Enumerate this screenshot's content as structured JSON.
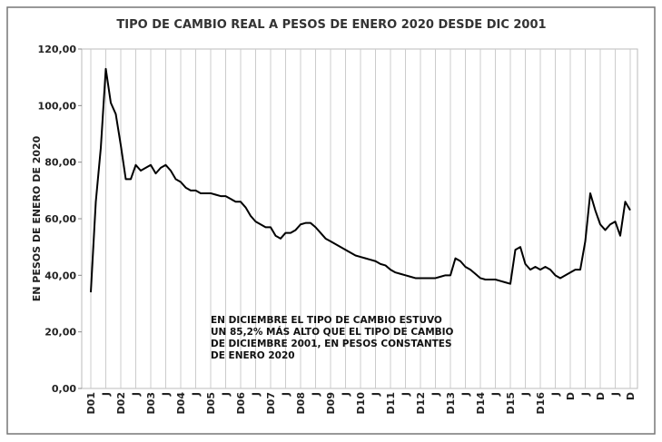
{
  "chart_data": {
    "type": "line",
    "title": "TIPO DE CAMBIO REAL A PESOS DE ENERO 2020 DESDE DIC 2001",
    "y_label": "EN PESOS DE ENERO DE 2020",
    "annotation": "EN DICIEMBRE EL TIPO DE CAMBIO ESTUVO UN 85,2% MÁS ALTO QUE EL TIPO DE CAMBIO DE DICIEMBRE 2001, EN PESOS CONSTANTES DE ENERO 2020",
    "categories": [
      "D01",
      null,
      null,
      "J",
      null,
      null,
      "D02",
      null,
      null,
      "J",
      null,
      null,
      "D03",
      null,
      null,
      "J",
      null,
      null,
      "D04",
      null,
      null,
      "J",
      null,
      null,
      "D05",
      null,
      null,
      "J",
      null,
      null,
      "D06",
      null,
      null,
      "J",
      null,
      null,
      "D07",
      null,
      null,
      "J",
      null,
      null,
      "D08",
      null,
      null,
      "J",
      null,
      null,
      "D09",
      null,
      null,
      "J",
      null,
      null,
      "D10",
      null,
      null,
      "J",
      null,
      null,
      "D11",
      null,
      null,
      "J",
      null,
      null,
      "D12",
      null,
      null,
      "J",
      null,
      null,
      "D13",
      null,
      null,
      "J",
      null,
      null,
      "D14",
      null,
      null,
      "J",
      null,
      null,
      "D15",
      null,
      null,
      "J",
      null,
      null,
      "D16",
      null,
      null,
      "J",
      null,
      null,
      "D",
      null,
      null,
      "J",
      null,
      null,
      "D",
      null,
      null,
      "J",
      null,
      null,
      "D"
    ],
    "values": [
      34,
      66,
      85,
      113,
      101,
      97,
      86,
      74,
      74,
      79,
      77,
      78,
      79,
      76,
      78,
      79,
      77,
      74,
      73,
      71,
      70,
      70,
      69,
      69,
      69,
      68.5,
      68,
      68,
      67,
      66,
      66,
      64,
      61,
      59,
      58,
      57,
      57,
      54,
      53,
      55,
      55,
      56,
      58,
      58.5,
      58.5,
      57,
      55,
      53,
      52,
      51,
      50,
      49,
      48,
      47,
      46.5,
      46,
      45.5,
      45,
      44,
      43.5,
      42,
      41,
      40.5,
      40,
      39.5,
      39,
      39,
      39,
      39,
      39,
      39.5,
      40,
      40,
      46,
      45,
      43,
      42,
      40.5,
      39,
      38.5,
      38.5,
      38.5,
      38,
      37.5,
      37,
      49,
      50,
      44,
      42,
      43,
      42,
      43,
      42,
      40,
      39,
      40,
      41,
      42,
      42,
      52,
      69,
      63,
      58,
      56,
      58,
      59,
      54,
      66,
      63
    ],
    "color": "#000000",
    "ylim": [
      0,
      120
    ],
    "yticks": [
      {
        "value": 0,
        "label": "0,00"
      },
      {
        "value": 20,
        "label": "20,00"
      },
      {
        "value": 40,
        "label": "40,00"
      },
      {
        "value": 60,
        "label": "60,00"
      },
      {
        "value": 80,
        "label": "80,00"
      },
      {
        "value": 100,
        "label": "100,00"
      },
      {
        "value": 120,
        "label": "120,00"
      }
    ],
    "xgrid": true
  }
}
